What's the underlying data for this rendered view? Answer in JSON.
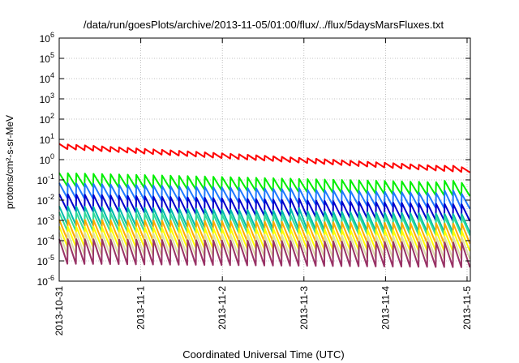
{
  "chart_data": {
    "type": "line",
    "title": "/data/run/goesPlots/archive/2013-11-05/01:00/flux/../flux/5daysMarsFluxes.txt",
    "xlabel": "Coordinated Universal Time (UTC)",
    "ylabel": "protons/cm²-s-sr-MeV",
    "y_scale": "log",
    "ylim": [
      "1e-6",
      "1e6"
    ],
    "xlim": [
      "2013-10-31",
      "2013-11-05 01:00"
    ],
    "grid": true,
    "legend": "none",
    "x_ticks": [
      "2013-10-31",
      "2013-11-1",
      "2013-11-2",
      "2013-11-3",
      "2013-11-4",
      "2013-11-5"
    ],
    "y_ticks": [
      {
        "base": "10",
        "exp": "-6"
      },
      {
        "base": "10",
        "exp": "-5"
      },
      {
        "base": "10",
        "exp": "-4"
      },
      {
        "base": "10",
        "exp": "-3"
      },
      {
        "base": "10",
        "exp": "-2"
      },
      {
        "base": "10",
        "exp": "-1"
      },
      {
        "base": "10",
        "exp": "0"
      },
      {
        "base": "10",
        "exp": "1"
      },
      {
        "base": "10",
        "exp": "2"
      },
      {
        "base": "10",
        "exp": "3"
      },
      {
        "base": "10",
        "exp": "4"
      },
      {
        "base": "10",
        "exp": "5"
      },
      {
        "base": "10",
        "exp": "6"
      }
    ],
    "series": [
      {
        "color": "#ff0000",
        "peak_start": 6.0,
        "peak_end": 0.4,
        "trough_ratio": 0.55,
        "events": [
          [
            3.25,
            0.7
          ],
          [
            4.75,
            0.5
          ]
        ]
      },
      {
        "color": "#00ee00",
        "peak_start": 0.22,
        "peak_end": 0.07,
        "trough_ratio": 0.22,
        "events": [
          [
            2.85,
            0.11
          ],
          [
            4.8,
            0.09
          ]
        ]
      },
      {
        "color": "#1f78ff",
        "peak_start": 0.07,
        "peak_end": 0.02,
        "trough_ratio": 0.18,
        "events": [
          [
            2.85,
            0.04
          ],
          [
            4.8,
            0.03
          ]
        ]
      },
      {
        "color": "#0000cc",
        "peak_start": 0.02,
        "peak_end": 0.006,
        "trough_ratio": 0.15,
        "events": [
          [
            2.85,
            0.012
          ]
        ]
      },
      {
        "color": "#00bbaa",
        "peak_start": 0.005,
        "peak_end": 0.002,
        "trough_ratio": 0.12,
        "events": [
          [
            2.85,
            0.004
          ]
        ]
      },
      {
        "color": "#33dd99",
        "peak_start": 0.0025,
        "peak_end": 0.0015,
        "trough_ratio": 0.12,
        "events": []
      },
      {
        "color": "#ffaa00",
        "peak_start": 0.0011,
        "peak_end": 0.0007,
        "trough_ratio": 0.1,
        "events": []
      },
      {
        "color": "#ffff00",
        "peak_start": 0.0005,
        "peak_end": 0.0003,
        "trough_ratio": 0.1,
        "events": []
      },
      {
        "color": "#ddddaa",
        "peak_start": 0.00025,
        "peak_end": 0.00015,
        "trough_ratio": 0.08,
        "events": []
      },
      {
        "color": "#993366",
        "peak_start": 0.00012,
        "peak_end": 8e-05,
        "trough_ratio": 0.06,
        "events": []
      }
    ],
    "cycles": 48,
    "days": 5.04
  }
}
